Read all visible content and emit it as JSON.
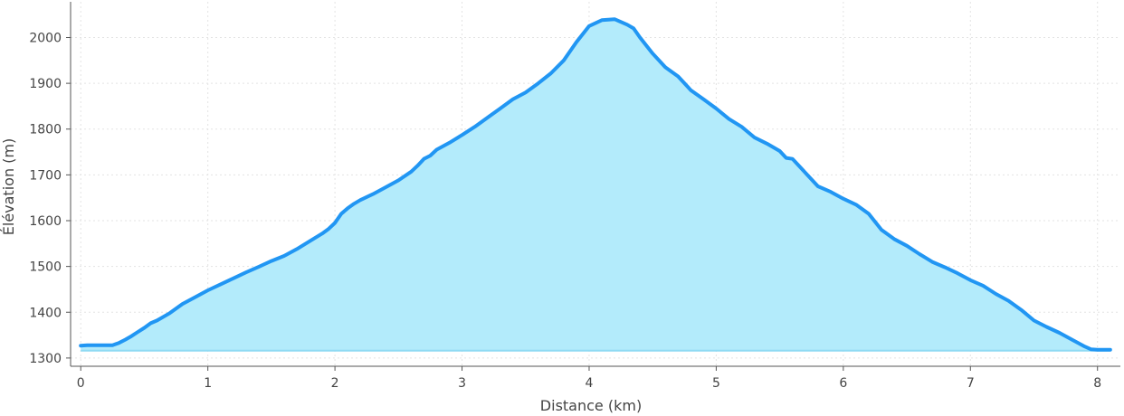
{
  "chart_data": {
    "type": "area",
    "xlabel": "Distance (km)",
    "ylabel": "Élévation (m)",
    "xlim": [
      -0.08,
      8.18
    ],
    "ylim": [
      1282,
      2078
    ],
    "baseline": 1316,
    "grid": true,
    "x_ticks": [
      0,
      1,
      2,
      3,
      4,
      5,
      6,
      7,
      8
    ],
    "y_ticks": [
      1300,
      1400,
      1500,
      1600,
      1700,
      1800,
      1900,
      2000
    ],
    "colors": {
      "line": "#2196f3",
      "fill": "#b3ebfb",
      "grid": "#e3e3e3",
      "axis": "#555555",
      "text": "#444444"
    },
    "series": [
      {
        "x": [
          0,
          0.05,
          0.1,
          0.15,
          0.2,
          0.25,
          0.3,
          0.35,
          0.4,
          0.45,
          0.5,
          0.55,
          0.6,
          0.7,
          0.8,
          0.9,
          1.0,
          1.1,
          1.2,
          1.3,
          1.4,
          1.5,
          1.6,
          1.7,
          1.8,
          1.9,
          1.95,
          2.0,
          2.05,
          2.1,
          2.15,
          2.2,
          2.3,
          2.4,
          2.5,
          2.6,
          2.65,
          2.7,
          2.75,
          2.8,
          2.9,
          3.0,
          3.1,
          3.2,
          3.3,
          3.4,
          3.5,
          3.6,
          3.7,
          3.8,
          3.9,
          4.0,
          4.1,
          4.2,
          4.3,
          4.35,
          4.4,
          4.5,
          4.6,
          4.7,
          4.8,
          4.9,
          5.0,
          5.1,
          5.2,
          5.3,
          5.4,
          5.5,
          5.55,
          5.6,
          5.7,
          5.8,
          5.9,
          6.0,
          6.1,
          6.2,
          6.3,
          6.4,
          6.5,
          6.6,
          6.7,
          6.8,
          6.9,
          7.0,
          7.1,
          7.2,
          7.3,
          7.4,
          7.5,
          7.6,
          7.7,
          7.8,
          7.9,
          7.95,
          8.0,
          8.05,
          8.1
        ],
        "y": [
          1327,
          1328,
          1328,
          1328,
          1328,
          1328,
          1333,
          1340,
          1348,
          1357,
          1366,
          1376,
          1382,
          1398,
          1418,
          1433,
          1448,
          1461,
          1474,
          1487,
          1499,
          1512,
          1523,
          1538,
          1555,
          1572,
          1582,
          1595,
          1615,
          1627,
          1637,
          1645,
          1658,
          1673,
          1688,
          1707,
          1720,
          1735,
          1742,
          1755,
          1770,
          1787,
          1805,
          1825,
          1845,
          1865,
          1880,
          1900,
          1922,
          1950,
          1990,
          2025,
          2038,
          2040,
          2028,
          2020,
          2000,
          1965,
          1935,
          1915,
          1885,
          1865,
          1845,
          1822,
          1805,
          1782,
          1768,
          1752,
          1737,
          1735,
          1705,
          1675,
          1663,
          1648,
          1635,
          1615,
          1580,
          1560,
          1545,
          1527,
          1510,
          1498,
          1485,
          1470,
          1458,
          1440,
          1425,
          1405,
          1382,
          1368,
          1355,
          1340,
          1325,
          1319,
          1318,
          1318,
          1318
        ]
      }
    ]
  }
}
